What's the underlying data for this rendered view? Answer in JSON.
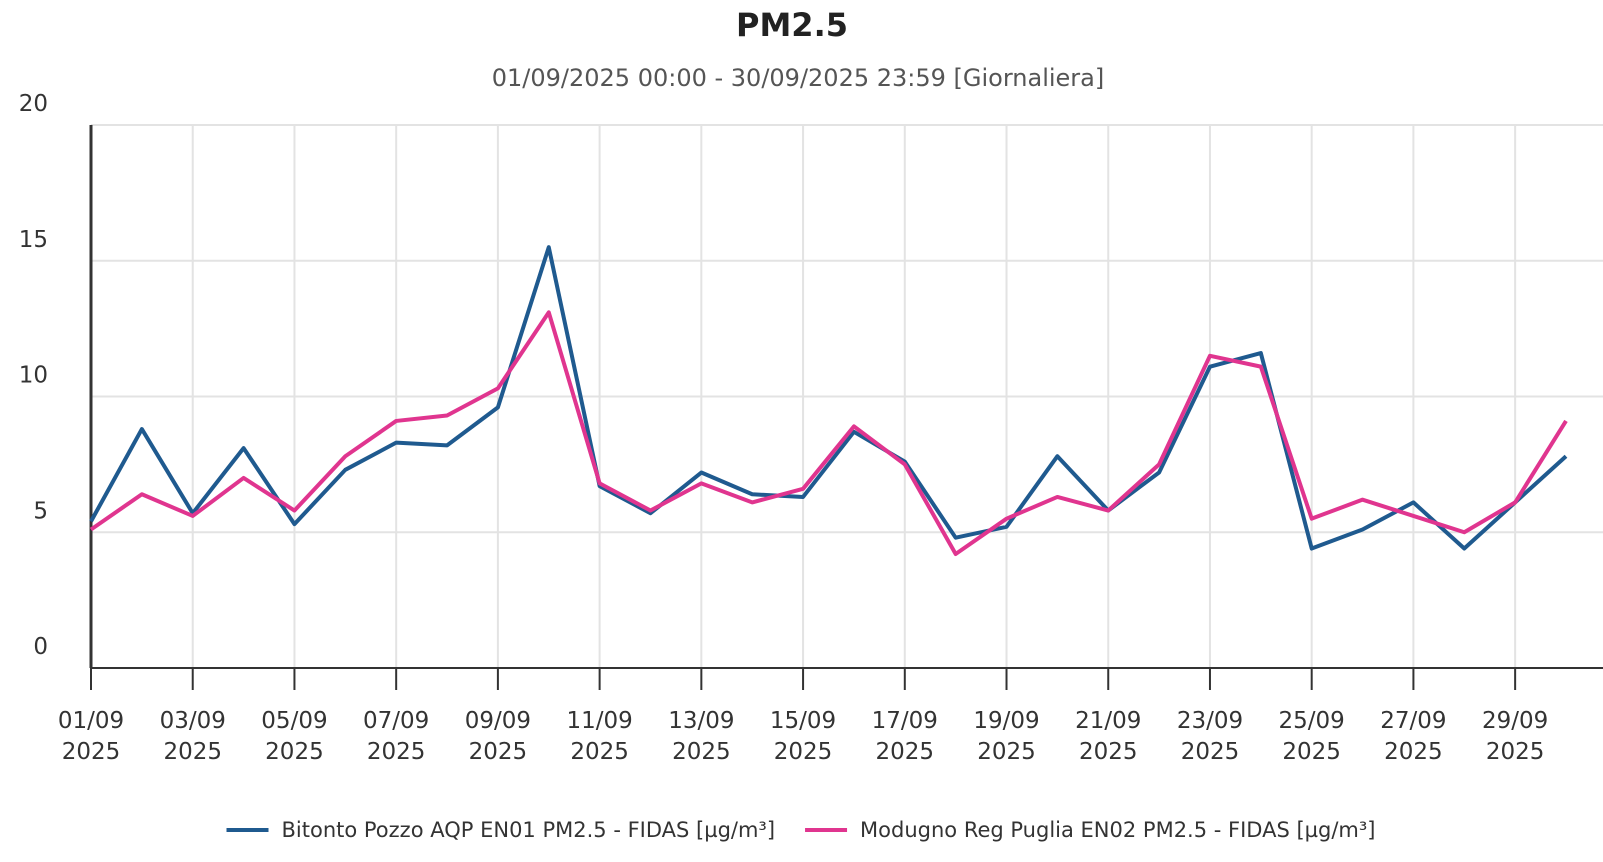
{
  "chart_data": {
    "type": "line",
    "title": "PM2.5",
    "subtitle": "01/09/2025 00:00 - 30/09/2025 23:59 [Giornaliera]",
    "categories": [
      "01/09\n2025",
      null,
      "03/09\n2025",
      null,
      "05/09\n2025",
      null,
      "07/09\n2025",
      null,
      "09/09\n2025",
      null,
      "11/09\n2025",
      null,
      "13/09\n2025",
      null,
      "15/09\n2025",
      null,
      "17/09\n2025",
      null,
      "19/09\n2025",
      null,
      "21/09\n2025",
      null,
      "23/09\n2025",
      null,
      "25/09\n2025",
      null,
      "27/09\n2025",
      null,
      "29/09\n2025",
      null
    ],
    "series": [
      {
        "name": "Bitonto Pozzo AQP EN01 PM2.5 - FIDAS [µg/m³]",
        "color": "#1f5a8f",
        "values": [
          5.4,
          8.8,
          5.7,
          8.1,
          5.3,
          7.3,
          8.3,
          8.2,
          9.6,
          15.5,
          6.7,
          5.7,
          7.2,
          6.4,
          6.3,
          8.7,
          7.6,
          4.8,
          5.2,
          7.8,
          5.8,
          7.2,
          11.1,
          11.6,
          4.4,
          5.1,
          6.1,
          4.4,
          6.1,
          7.8
        ]
      },
      {
        "name": "Modugno Reg Puglia EN02 PM2.5 - FIDAS [µg/m³]",
        "color": "#e0358f",
        "values": [
          5.1,
          6.4,
          5.6,
          7.0,
          5.8,
          7.8,
          9.1,
          9.3,
          10.3,
          13.1,
          6.8,
          5.8,
          6.8,
          6.1,
          6.6,
          8.9,
          7.5,
          4.2,
          5.5,
          6.3,
          5.8,
          7.5,
          11.5,
          11.1,
          5.5,
          6.2,
          5.6,
          5.0,
          6.1,
          9.1
        ]
      }
    ],
    "ylim": [
      0,
      20
    ],
    "yticks": [
      0,
      5,
      10,
      15,
      20
    ],
    "grid": true,
    "legend": "bottom"
  }
}
